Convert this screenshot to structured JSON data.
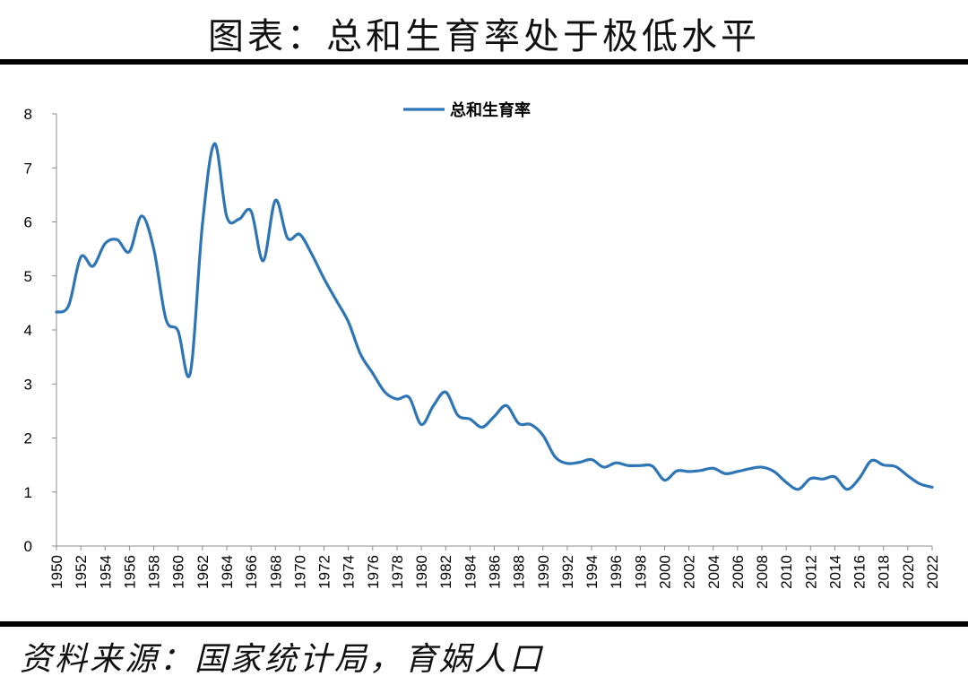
{
  "title": "图表：总和生育率处于极低水平",
  "source": "资料来源：国家统计局，育娲人口",
  "chart_data": {
    "type": "line",
    "legend_position": "top-center",
    "grid": false,
    "ylim": [
      0,
      8
    ],
    "yticks": [
      0,
      1,
      2,
      3,
      4,
      5,
      6,
      7,
      8
    ],
    "xlim": [
      1950,
      2022
    ],
    "xticks": [
      1950,
      1952,
      1954,
      1956,
      1958,
      1960,
      1962,
      1964,
      1966,
      1968,
      1970,
      1972,
      1974,
      1976,
      1978,
      1980,
      1982,
      1984,
      1986,
      1988,
      1990,
      1992,
      1994,
      1996,
      1998,
      2000,
      2002,
      2004,
      2006,
      2008,
      2010,
      2012,
      2014,
      2016,
      2018,
      2020,
      2022
    ],
    "series": [
      {
        "name": "总和生育率",
        "color": "#2e75b6",
        "x": [
          1950,
          1951,
          1952,
          1953,
          1954,
          1955,
          1956,
          1957,
          1958,
          1959,
          1960,
          1961,
          1962,
          1963,
          1964,
          1965,
          1966,
          1967,
          1968,
          1969,
          1970,
          1971,
          1972,
          1973,
          1974,
          1975,
          1976,
          1977,
          1978,
          1979,
          1980,
          1981,
          1982,
          1983,
          1984,
          1985,
          1986,
          1987,
          1988,
          1989,
          1990,
          1991,
          1992,
          1993,
          1994,
          1995,
          1996,
          1997,
          1998,
          1999,
          2000,
          2001,
          2002,
          2003,
          2004,
          2005,
          2006,
          2007,
          2008,
          2009,
          2010,
          2011,
          2012,
          2013,
          2014,
          2015,
          2016,
          2017,
          2018,
          2019,
          2020,
          2021,
          2022
        ],
        "y": [
          4.33,
          4.45,
          5.35,
          5.18,
          5.6,
          5.67,
          5.45,
          6.11,
          5.5,
          4.2,
          3.98,
          3.2,
          5.95,
          7.45,
          6.1,
          6.05,
          6.2,
          5.28,
          6.4,
          5.7,
          5.77,
          5.4,
          4.95,
          4.55,
          4.15,
          3.55,
          3.2,
          2.85,
          2.72,
          2.75,
          2.25,
          2.6,
          2.85,
          2.42,
          2.35,
          2.2,
          2.4,
          2.6,
          2.27,
          2.25,
          2.05,
          1.65,
          1.53,
          1.55,
          1.6,
          1.46,
          1.54,
          1.49,
          1.49,
          1.48,
          1.22,
          1.39,
          1.38,
          1.4,
          1.44,
          1.34,
          1.38,
          1.43,
          1.46,
          1.38,
          1.18,
          1.05,
          1.25,
          1.24,
          1.28,
          1.05,
          1.25,
          1.58,
          1.5,
          1.47,
          1.3,
          1.15,
          1.09
        ]
      }
    ]
  }
}
